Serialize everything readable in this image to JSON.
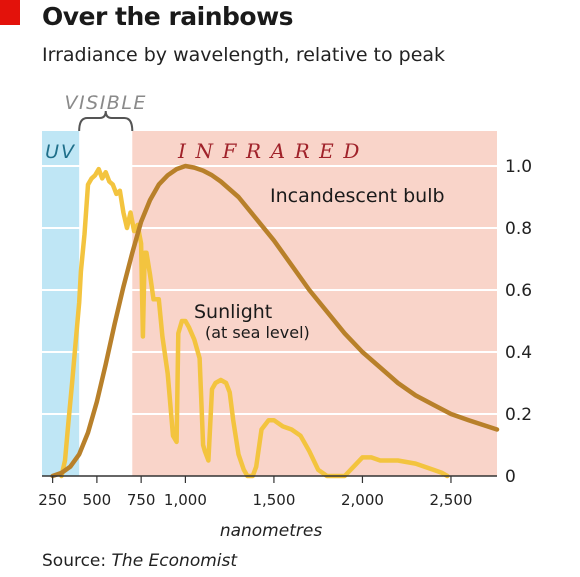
{
  "title": "Over the rainbows",
  "subtitle": "Irradiance by wavelength, relative to peak",
  "source_prefix": "Source: ",
  "source_name": "The Economist",
  "colors": {
    "brand_red": "#e3120b",
    "uv_band": "#bfe6f5",
    "infrared_band": "#f9d4c9",
    "bulb_line": "#b8802a",
    "sunlight_line": "#f3c43f",
    "gridline": "#ffffff"
  },
  "chart_data": {
    "type": "line",
    "title": "Over the rainbows",
    "subtitle": "Irradiance by wavelength, relative to peak",
    "xlabel": "nanometres",
    "ylabel": "",
    "xlim": [
      190,
      2760
    ],
    "ylim": [
      0,
      1.0
    ],
    "x_ticks": [
      250,
      500,
      750,
      1000,
      1500,
      2000,
      2500
    ],
    "x_tick_labels": [
      "250",
      "500",
      "750",
      "1,000",
      "1,500",
      "2,000",
      "2,500"
    ],
    "y_ticks": [
      0,
      0.2,
      0.4,
      0.6,
      0.8,
      1.0
    ],
    "y_tick_labels": [
      "0",
      "0.2",
      "0.4",
      "0.6",
      "0.8",
      "1.0"
    ],
    "y_axis_side": "right",
    "grid": true,
    "regions": [
      {
        "label": "UV",
        "from": 190,
        "to": 400
      },
      {
        "label": "VISIBLE",
        "from": 400,
        "to": 700
      },
      {
        "label": "I N F R A R E D",
        "from": 700,
        "to": 2760
      }
    ],
    "series": [
      {
        "name": "Incandescent bulb",
        "x": [
          250,
          300,
          350,
          400,
          450,
          500,
          550,
          600,
          650,
          700,
          750,
          800,
          850,
          900,
          950,
          1000,
          1050,
          1100,
          1150,
          1200,
          1300,
          1400,
          1500,
          1600,
          1700,
          1800,
          1900,
          2000,
          2100,
          2200,
          2300,
          2400,
          2500,
          2600,
          2760
        ],
        "y": [
          0.0,
          0.01,
          0.03,
          0.07,
          0.14,
          0.24,
          0.36,
          0.49,
          0.61,
          0.72,
          0.82,
          0.89,
          0.94,
          0.97,
          0.99,
          1.0,
          0.995,
          0.985,
          0.97,
          0.95,
          0.9,
          0.83,
          0.76,
          0.68,
          0.6,
          0.53,
          0.46,
          0.4,
          0.35,
          0.3,
          0.26,
          0.23,
          0.2,
          0.18,
          0.15
        ]
      },
      {
        "name": "Sunlight",
        "note": "(at sea level)",
        "x": [
          300,
          320,
          340,
          360,
          380,
          400,
          410,
          430,
          450,
          470,
          490,
          510,
          530,
          550,
          570,
          590,
          610,
          630,
          650,
          670,
          690,
          710,
          730,
          750,
          760,
          770,
          780,
          800,
          820,
          850,
          870,
          900,
          930,
          950,
          960,
          980,
          1000,
          1020,
          1050,
          1080,
          1100,
          1110,
          1130,
          1150,
          1170,
          1200,
          1230,
          1250,
          1270,
          1300,
          1330,
          1350,
          1380,
          1400,
          1430,
          1470,
          1500,
          1550,
          1600,
          1650,
          1700,
          1750,
          1800,
          1850,
          1900,
          1950,
          2000,
          2050,
          2100,
          2200,
          2300,
          2400,
          2450,
          2480
        ],
        "y": [
          0.0,
          0.05,
          0.18,
          0.3,
          0.43,
          0.56,
          0.66,
          0.78,
          0.94,
          0.96,
          0.97,
          0.99,
          0.96,
          0.98,
          0.95,
          0.94,
          0.91,
          0.92,
          0.85,
          0.8,
          0.85,
          0.79,
          0.81,
          0.75,
          0.45,
          0.72,
          0.72,
          0.65,
          0.57,
          0.57,
          0.45,
          0.33,
          0.13,
          0.11,
          0.46,
          0.5,
          0.5,
          0.48,
          0.44,
          0.38,
          0.1,
          0.08,
          0.05,
          0.28,
          0.3,
          0.31,
          0.3,
          0.27,
          0.18,
          0.07,
          0.02,
          0.0,
          0.0,
          0.03,
          0.15,
          0.18,
          0.18,
          0.16,
          0.15,
          0.13,
          0.08,
          0.02,
          0.0,
          0.0,
          0.0,
          0.03,
          0.06,
          0.06,
          0.05,
          0.05,
          0.04,
          0.02,
          0.01,
          0.0
        ]
      }
    ]
  }
}
